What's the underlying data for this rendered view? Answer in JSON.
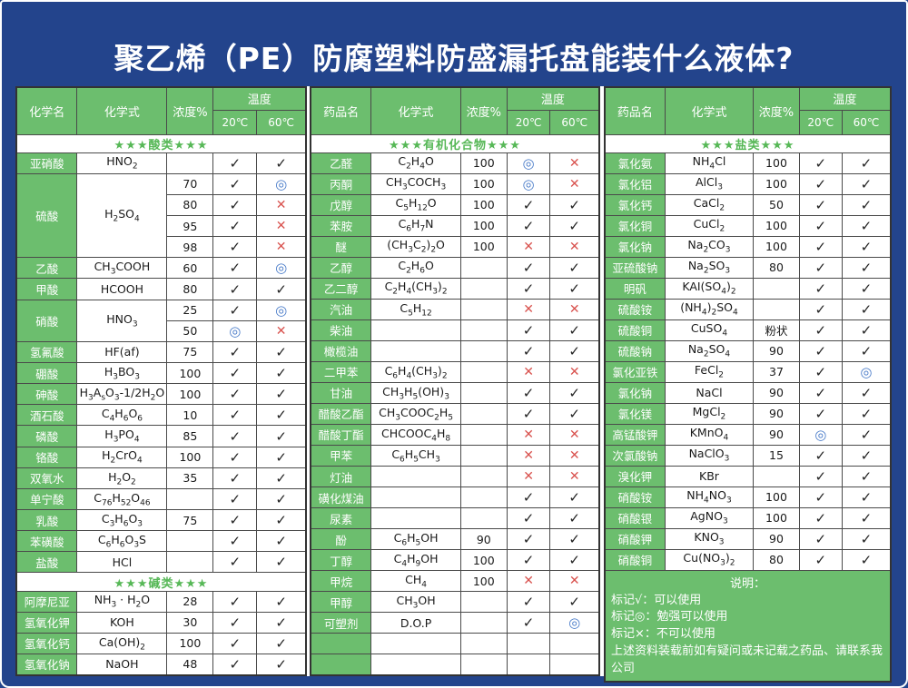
{
  "page": {
    "title": "聚乙烯（PE）防腐塑料防盛漏托盘能装什么液体?"
  },
  "colors": {
    "background": "#23448C",
    "cell_green": "#6CBE6E",
    "section_green": "#57B857",
    "check_black": "#222222",
    "cross_red": "#D9534F",
    "circle_blue": "#4A7CC9"
  },
  "symbols": {
    "ok": "✓",
    "no": "✕",
    "mid": "◎"
  },
  "tables": [
    {
      "headers": {
        "name": "化学名",
        "formula": "化学式",
        "conc": "浓度%",
        "temp": "温度",
        "t20": "20℃",
        "t60": "60℃"
      },
      "rows": [
        {
          "sec": "★★★酸类★★★"
        },
        {
          "n": "亚硝酸",
          "f": "HNO~2~",
          "c": "",
          "a": "ok",
          "b": "ok"
        },
        {
          "n": "硫酸",
          "ns": 4,
          "f": "H~2~SO~4~",
          "fs": 4,
          "c": "70",
          "a": "ok",
          "b": "mid"
        },
        {
          "n": "",
          "ns": 0,
          "f": "",
          "fs": 0,
          "c": "80",
          "a": "ok",
          "b": "no"
        },
        {
          "n": "",
          "ns": 0,
          "f": "",
          "fs": 0,
          "c": "95",
          "a": "ok",
          "b": "no"
        },
        {
          "n": "",
          "ns": 0,
          "f": "",
          "fs": 0,
          "c": "98",
          "a": "ok",
          "b": "no"
        },
        {
          "n": "乙酸",
          "f": "CH~3~COOH",
          "c": "60",
          "a": "ok",
          "b": "mid"
        },
        {
          "n": "甲酸",
          "f": "HCOOH",
          "c": "80",
          "a": "ok",
          "b": "ok"
        },
        {
          "n": "硝酸",
          "ns": 2,
          "f": "HNO~3~",
          "fs": 2,
          "c": "25",
          "a": "ok",
          "b": "mid"
        },
        {
          "n": "",
          "ns": 0,
          "f": "",
          "fs": 0,
          "c": "50",
          "a": "mid",
          "b": "no"
        },
        {
          "n": "氢氟酸",
          "f": "HF(af)",
          "c": "75",
          "a": "ok",
          "b": "ok"
        },
        {
          "n": "硼酸",
          "f": "H~3~BO~3~",
          "c": "100",
          "a": "ok",
          "b": "ok"
        },
        {
          "n": "砷酸",
          "f": "H~3~A~s~O~3~-1/2H~2~O",
          "c": "100",
          "a": "ok",
          "b": "ok"
        },
        {
          "n": "酒石酸",
          "f": "C~4~H~6~O~6~",
          "c": "10",
          "a": "ok",
          "b": "ok"
        },
        {
          "n": "磷酸",
          "f": "H~3~PO~4~",
          "c": "85",
          "a": "ok",
          "b": "ok"
        },
        {
          "n": "铬酸",
          "f": "H~2~CrO~4~",
          "c": "100",
          "a": "ok",
          "b": "ok"
        },
        {
          "n": "双氧水",
          "f": "H~2~O~2~",
          "c": "35",
          "a": "ok",
          "b": "ok"
        },
        {
          "n": "单宁酸",
          "f": "C~76~H~52~O~46~",
          "c": "",
          "a": "ok",
          "b": "ok"
        },
        {
          "n": "乳酸",
          "f": "C~3~H~6~O~3~",
          "c": "75",
          "a": "ok",
          "b": "ok"
        },
        {
          "n": "苯磺酸",
          "f": "C~6~H~6~O~3~S",
          "c": "",
          "a": "ok",
          "b": "ok"
        },
        {
          "n": "盐酸",
          "f": "HCl",
          "c": "",
          "a": "ok",
          "b": "ok"
        },
        {
          "sec": "★★★碱类★★★"
        },
        {
          "n": "阿摩尼亚",
          "f": "NH~3~ · H~2~O",
          "c": "28",
          "a": "ok",
          "b": "ok"
        },
        {
          "n": "氢氧化钾",
          "f": "KOH",
          "c": "30",
          "a": "ok",
          "b": "ok"
        },
        {
          "n": "氢氧化钙",
          "f": "Ca(OH)~2~",
          "c": "100",
          "a": "ok",
          "b": "ok"
        },
        {
          "n": "氢氧化钠",
          "f": "NaOH",
          "c": "48",
          "a": "ok",
          "b": "ok"
        }
      ]
    },
    {
      "headers": {
        "name": "药品名",
        "formula": "化学式",
        "conc": "浓度%",
        "temp": "温度",
        "t20": "20℃",
        "t60": "60℃"
      },
      "rows": [
        {
          "sec": "★★★有机化合物★★★"
        },
        {
          "n": "乙醛",
          "f": "C~2~H~4~O",
          "c": "100",
          "a": "mid",
          "b": "no"
        },
        {
          "n": "丙酮",
          "f": "CH~3~COCH~3~",
          "c": "100",
          "a": "mid",
          "b": "no"
        },
        {
          "n": "戊醇",
          "f": "C~5~H~12~O",
          "c": "100",
          "a": "ok",
          "b": "ok"
        },
        {
          "n": "苯胺",
          "f": "C~6~H~7~N",
          "c": "100",
          "a": "ok",
          "b": "ok"
        },
        {
          "n": "醚",
          "f": "(CH~3~C~2~)~2~O",
          "c": "100",
          "a": "no",
          "b": "no"
        },
        {
          "n": "乙醇",
          "f": "C~2~H~6~O",
          "c": "",
          "a": "ok",
          "b": "ok"
        },
        {
          "n": "乙二醇",
          "f": "C~2~H~4~(CH~3~)~2~",
          "c": "",
          "a": "ok",
          "b": "ok"
        },
        {
          "n": "汽油",
          "f": "C~5~H~12~",
          "c": "",
          "a": "no",
          "b": "no"
        },
        {
          "n": "柴油",
          "f": "",
          "c": "",
          "a": "ok",
          "b": "ok"
        },
        {
          "n": "橄榄油",
          "f": "",
          "c": "",
          "a": "ok",
          "b": "ok"
        },
        {
          "n": "二甲苯",
          "f": "C~6~H~4~(CH~3~)~2~",
          "c": "",
          "a": "no",
          "b": "no"
        },
        {
          "n": "甘油",
          "f": "CH~3~H~5~(OH)~3~",
          "c": "",
          "a": "ok",
          "b": "ok"
        },
        {
          "n": "醋酸乙酯",
          "f": "CH~3~COOC~2~H~5~",
          "c": "",
          "a": "ok",
          "b": "ok"
        },
        {
          "n": "醋酸丁酯",
          "f": "CHCOOC~4~H~8~",
          "c": "",
          "a": "no",
          "b": "no"
        },
        {
          "n": "甲苯",
          "f": "C~6~H~5~CH~3~",
          "c": "",
          "a": "no",
          "b": "no"
        },
        {
          "n": "灯油",
          "f": "",
          "c": "",
          "a": "no",
          "b": "no"
        },
        {
          "n": "磺化煤油",
          "f": "",
          "c": "",
          "a": "ok",
          "b": "ok"
        },
        {
          "n": "尿素",
          "f": "",
          "c": "",
          "a": "ok",
          "b": "ok"
        },
        {
          "n": "酚",
          "f": "C~6~H~5~OH",
          "c": "90",
          "a": "ok",
          "b": "ok"
        },
        {
          "n": "丁醇",
          "f": "C~4~H~9~OH",
          "c": "100",
          "a": "ok",
          "b": "ok"
        },
        {
          "n": "甲烷",
          "f": "CH~4~",
          "c": "100",
          "a": "no",
          "b": "no"
        },
        {
          "n": "甲醇",
          "f": "CH~3~OH",
          "c": "",
          "a": "ok",
          "b": "ok"
        },
        {
          "n": "可塑剂",
          "f": "D.O.P",
          "c": "",
          "a": "ok",
          "b": "mid"
        },
        {
          "n": "",
          "f": "",
          "c": "",
          "a": "",
          "b": ""
        },
        {
          "n": "",
          "f": "",
          "c": "",
          "a": "",
          "b": ""
        }
      ]
    },
    {
      "headers": {
        "name": "药品名",
        "formula": "化学式",
        "conc": "浓度%",
        "temp": "温度",
        "t20": "20℃",
        "t60": "60℃"
      },
      "rows": [
        {
          "sec": "★★★盐类★★★"
        },
        {
          "n": "氯化氨",
          "f": "NH~4~Cl",
          "c": "100",
          "a": "ok",
          "b": "ok"
        },
        {
          "n": "氯化铝",
          "f": "AlCl~3~",
          "c": "100",
          "a": "ok",
          "b": "ok"
        },
        {
          "n": "氯化钙",
          "f": "CaCl~2~",
          "c": "50",
          "a": "ok",
          "b": "ok"
        },
        {
          "n": "氯化铜",
          "f": "CuCl~2~",
          "c": "100",
          "a": "ok",
          "b": "ok"
        },
        {
          "n": "氯化钠",
          "f": "Na~2~CO~3~",
          "c": "100",
          "a": "ok",
          "b": "ok"
        },
        {
          "n": "亚硫酸钠",
          "f": "Na~2~SO~3~",
          "c": "80",
          "a": "ok",
          "b": "ok"
        },
        {
          "n": "明矾",
          "f": "KAI(SO~4~)~2~",
          "c": "",
          "a": "ok",
          "b": "ok"
        },
        {
          "n": "硫酸铵",
          "f": "(NH~4~)~2~SO~4~",
          "c": "",
          "a": "ok",
          "b": "ok"
        },
        {
          "n": "硫酸铜",
          "f": "CuSO~4~",
          "c": "粉状",
          "a": "ok",
          "b": "ok"
        },
        {
          "n": "硫酸钠",
          "f": "Na~2~SO~4~",
          "c": "90",
          "a": "ok",
          "b": "ok"
        },
        {
          "n": "氯化亚铁",
          "f": "FeCl~2~",
          "c": "37",
          "a": "ok",
          "b": "mid"
        },
        {
          "n": "氯化钠",
          "f": "NaCl",
          "c": "90",
          "a": "ok",
          "b": "ok"
        },
        {
          "n": "氯化镁",
          "f": "MgCl~2~",
          "c": "90",
          "a": "ok",
          "b": "ok"
        },
        {
          "n": "高锰酸钾",
          "f": "KMnO~4~",
          "c": "90",
          "a": "mid",
          "b": "ok"
        },
        {
          "n": "次氯酸钠",
          "f": "NaClO~3~",
          "c": "15",
          "a": "ok",
          "b": "ok"
        },
        {
          "n": "溴化钾",
          "f": "KBr",
          "c": "",
          "a": "ok",
          "b": "ok"
        },
        {
          "n": "硝酸铵",
          "f": "NH~4~NO~3~",
          "c": "100",
          "a": "ok",
          "b": "ok"
        },
        {
          "n": "硝酸银",
          "f": "AgNO~3~",
          "c": "100",
          "a": "ok",
          "b": "ok"
        },
        {
          "n": "硝酸钾",
          "f": "KNO~3~",
          "c": "90",
          "a": "ok",
          "b": "ok"
        },
        {
          "n": "硝酸铜",
          "f": "Cu(NO~3~)~2~",
          "c": "80",
          "a": "ok",
          "b": "ok"
        }
      ]
    }
  ],
  "legend": {
    "title": "说明：",
    "lines": [
      "标记√：可以使用",
      "标记◎：勉强可以使用",
      "标记×：不可以使用",
      "上述资料装载前如有疑问或未记载之药品、请联系我公司"
    ]
  }
}
